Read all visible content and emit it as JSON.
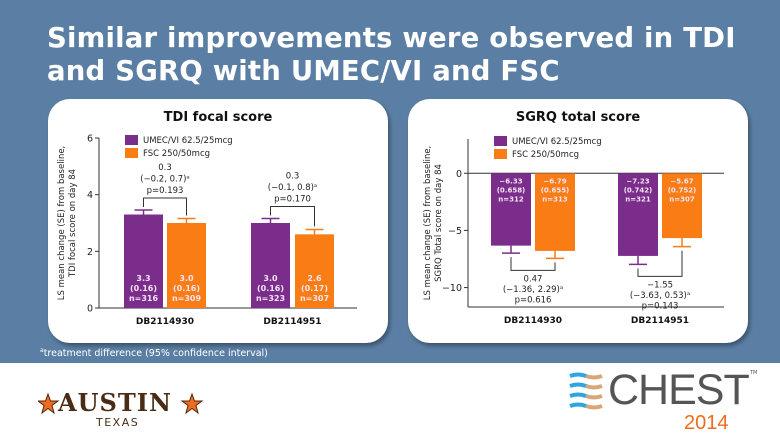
{
  "title": "Similar improvements were observed in TDI and SGRQ with UMEC/VI and FSC",
  "footnote": {
    "sup": "a",
    "text": "treatment difference (95% confidence interval)"
  },
  "logos": {
    "austin": "AUSTIN",
    "texas": "TEXAS",
    "chest": "CHEST",
    "chest_tm": "TM",
    "year": "2014"
  },
  "colors": {
    "umec": "#7b2d8b",
    "fsc": "#f97c14",
    "background": "#5b7fa4"
  },
  "chart_data": [
    {
      "type": "bar",
      "title": "TDI focal score",
      "ylabel": [
        "LS mean change (SE) from baseline,",
        "TDI focal score on day 84"
      ],
      "ylim": [
        0,
        6
      ],
      "yticks": [
        0,
        2,
        4,
        6
      ],
      "categories": [
        "DB2114930",
        "DB2114951"
      ],
      "legend": [
        "UMEC/VI 62.5/25mcg",
        "FSC 250/50mcg"
      ],
      "series": [
        {
          "name": "UMEC/VI 62.5/25mcg",
          "values": [
            3.3,
            3.0
          ],
          "se": [
            0.16,
            0.16
          ],
          "n": [
            316,
            323
          ],
          "labels": [
            [
              "3.3",
              "(0.16)",
              "n=316"
            ],
            [
              "3.0",
              "(0.16)",
              "n=323"
            ]
          ]
        },
        {
          "name": "FSC 250/50mcg",
          "values": [
            3.0,
            2.6
          ],
          "se": [
            0.16,
            0.17
          ],
          "n": [
            309,
            307
          ],
          "labels": [
            [
              "3.0",
              "(0.16)",
              "n=309"
            ],
            [
              "2.6",
              "(0.17)",
              "n=307"
            ]
          ]
        }
      ],
      "differences": [
        [
          "0.3",
          "(−0.2, 0.7)",
          "p=0.193"
        ],
        [
          "0.3",
          "(−0.1, 0.8)",
          "p=0.170"
        ]
      ]
    },
    {
      "type": "bar",
      "title": "SGRQ total score",
      "ylabel": [
        "LS mean change (SE) from baseline,",
        "SGRQ Total score on day 84"
      ],
      "ylim": [
        -11.7,
        3
      ],
      "yticks": [
        0,
        -5,
        -10
      ],
      "categories": [
        "DB2114930",
        "DB2114951"
      ],
      "legend": [
        "UMEC/VI 62.5/25mcg",
        "FSC 250/50mcg"
      ],
      "series": [
        {
          "name": "UMEC/VI 62.5/25mcg",
          "values": [
            -6.33,
            -7.23
          ],
          "se": [
            0.658,
            0.742
          ],
          "n": [
            312,
            321
          ],
          "labels": [
            [
              "−6.33",
              "(0.658)",
              "n=312"
            ],
            [
              "−7.23",
              "(0.742)",
              "n=321"
            ]
          ]
        },
        {
          "name": "FSC 250/50mcg",
          "values": [
            -6.79,
            -5.67
          ],
          "se": [
            0.655,
            0.752
          ],
          "n": [
            313,
            307
          ],
          "labels": [
            [
              "−6.79",
              "(0.655)",
              "n=313"
            ],
            [
              "−5.67",
              "(0.752)",
              "n=307"
            ]
          ]
        }
      ],
      "differences": [
        [
          "0.47",
          "(−1.36, 2.29)",
          "p=0.616"
        ],
        [
          "−1.55",
          "(−3.63, 0.53)",
          "p=0.143"
        ]
      ]
    }
  ]
}
